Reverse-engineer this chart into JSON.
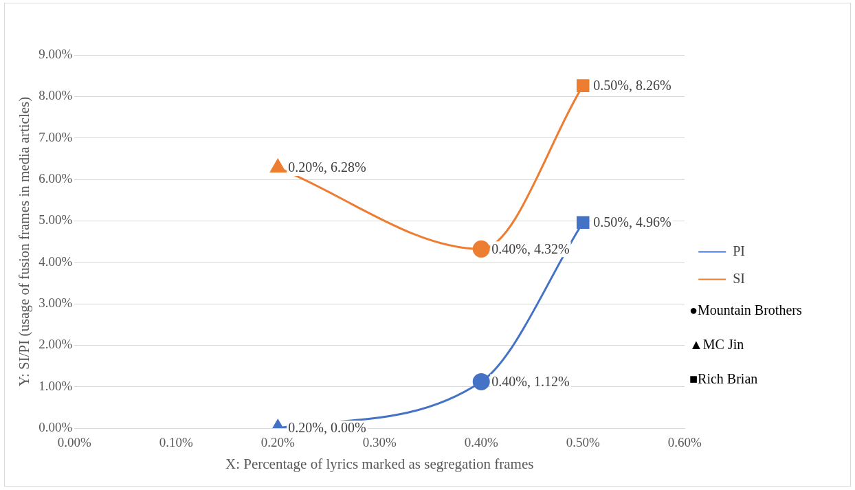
{
  "chart_data": {
    "type": "line",
    "xlabel": "X: Percentage of lyrics marked as segregation frames",
    "ylabel": "Y: SI/PI (usage of fusion frames in media articles)",
    "xlim": [
      0,
      0.6
    ],
    "xticks": [
      {
        "value": 0,
        "label": "0.00%"
      },
      {
        "value": 0.1,
        "label": "0.10%"
      },
      {
        "value": 0.2,
        "label": "0.20%"
      },
      {
        "value": 0.3,
        "label": "0.30%"
      },
      {
        "value": 0.4,
        "label": "0.40%"
      },
      {
        "value": 0.5,
        "label": "0.50%"
      },
      {
        "value": 0.6,
        "label": "0.60%"
      }
    ],
    "ylim": [
      0,
      9
    ],
    "yticks": [
      {
        "value": 0,
        "label": "0.00%"
      },
      {
        "value": 1,
        "label": "1.00%"
      },
      {
        "value": 2,
        "label": "2.00%"
      },
      {
        "value": 3,
        "label": "3.00%"
      },
      {
        "value": 4,
        "label": "4.00%"
      },
      {
        "value": 5,
        "label": "5.00%"
      },
      {
        "value": 6,
        "label": "6.00%"
      },
      {
        "value": 7,
        "label": "7.00%"
      },
      {
        "value": 8,
        "label": "8.00%"
      },
      {
        "value": 9,
        "label": "9.00%"
      }
    ],
    "series": [
      {
        "name": "PI",
        "color": "#4472c4",
        "x": [
          0.2,
          0.4,
          0.5
        ],
        "values": [
          0,
          1.12,
          4.96
        ],
        "marker": [
          "triangle",
          "circle",
          "square"
        ],
        "value_labels": [
          "0.20%, 0.00%",
          "0.40%, 1.12%",
          "0.50%, 4.96%"
        ]
      },
      {
        "name": "SI",
        "color": "#ed7d31",
        "x": [
          0.2,
          0.4,
          0.5
        ],
        "values": [
          6.28,
          4.32,
          8.26
        ],
        "marker": [
          "triangle",
          "circle",
          "square"
        ],
        "value_labels": [
          "0.20%, 6.28%",
          "0.40%, 4.32%",
          "0.50%, 8.26%"
        ]
      }
    ],
    "grid": "y",
    "legend": "right",
    "line_style": "solid",
    "annotations": [
      "●Mountain Brothers",
      "▲MC Jin",
      "■Rich Brian"
    ]
  }
}
